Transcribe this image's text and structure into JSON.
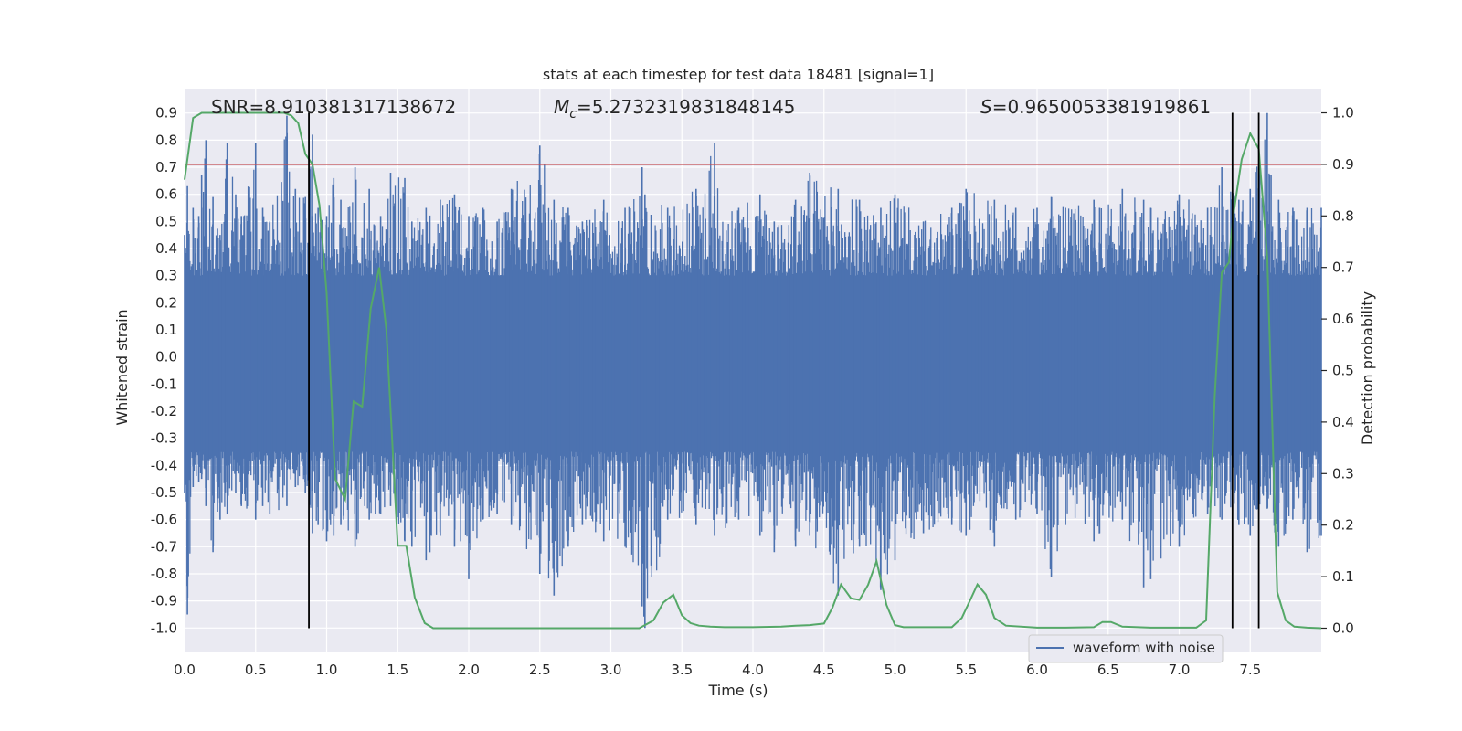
{
  "chart_data": {
    "type": "line",
    "title": "stats at each timestep for test data 18481 [signal=1]",
    "xlabel": "Time (s)",
    "ylabel": "Whitened strain",
    "y2label": "Detection probability",
    "xlim": [
      0.0,
      8.0
    ],
    "ylim": [
      -1.09,
      0.99
    ],
    "y2lim": [
      -0.047,
      1.047
    ],
    "xticks": [
      "0.0",
      "0.5",
      "1.0",
      "1.5",
      "2.0",
      "2.5",
      "3.0",
      "3.5",
      "4.0",
      "4.5",
      "5.0",
      "5.5",
      "6.0",
      "6.5",
      "7.0",
      "7.5"
    ],
    "yticks": [
      "0.9",
      "0.8",
      "0.7",
      "0.6",
      "0.5",
      "0.4",
      "0.3",
      "0.2",
      "0.1",
      "0.0",
      "-0.1",
      "-0.2",
      "-0.3",
      "-0.4",
      "-0.5",
      "-0.6",
      "-0.7",
      "-0.8",
      "-0.9",
      "-1.0"
    ],
    "y2ticks": [
      "1.0",
      "0.9",
      "0.8",
      "0.7",
      "0.6",
      "0.5",
      "0.4",
      "0.3",
      "0.2",
      "0.1",
      "0.0"
    ],
    "annotations": {
      "snr": "SNR=8.910381317138672",
      "mc_symbol": "M",
      "mc_sub": "c",
      "mc_value": "=5.2732319831848145",
      "s_symbol": "S",
      "s_value": "=0.9650053381919861"
    },
    "threshold": {
      "y2": 0.9,
      "color": "#c44e52"
    },
    "vertical_lines": [
      0.875,
      7.375,
      7.56
    ],
    "legend": {
      "label": "waveform with noise",
      "location": "lower-right"
    },
    "colors": {
      "waveform": "#4c72b0",
      "probability": "#55a868",
      "vline": "#000000",
      "plot_bg": "#eaeaf2",
      "grid": "#ffffff"
    },
    "waveform_sample": {
      "x": [
        0.0,
        0.02,
        0.06,
        0.1,
        0.12,
        0.15,
        0.2,
        0.25,
        0.3,
        0.36,
        0.4,
        0.5,
        0.55,
        0.6,
        0.72,
        0.78,
        0.85,
        0.9,
        0.94,
        1.0,
        1.05,
        1.1,
        1.12,
        1.2,
        1.3,
        1.38,
        1.45,
        1.55,
        1.6,
        1.7,
        1.8,
        1.9,
        2.0,
        2.1,
        2.2,
        2.3,
        2.5,
        2.6,
        2.7,
        2.8,
        2.95,
        3.1,
        3.22,
        3.24,
        3.4,
        3.6,
        3.73,
        3.9,
        4.05,
        4.15,
        4.3,
        4.4,
        4.6,
        4.75,
        4.9,
        5.0,
        5.2,
        5.4,
        5.5,
        5.7,
        5.85,
        6.0,
        6.1,
        6.2,
        6.4,
        6.44,
        6.6,
        6.75,
        6.8,
        7.0,
        7.2,
        7.3,
        7.42,
        7.5,
        7.62,
        7.7,
        7.8,
        7.9,
        8.0
      ],
      "y_high": [
        0.45,
        0.63,
        0.55,
        0.52,
        0.67,
        0.8,
        0.59,
        0.45,
        0.79,
        0.6,
        0.52,
        0.79,
        0.55,
        0.5,
        0.89,
        0.62,
        0.59,
        0.82,
        0.55,
        0.52,
        0.66,
        0.58,
        0.48,
        0.7,
        0.62,
        0.52,
        0.68,
        0.66,
        0.5,
        0.55,
        0.58,
        0.6,
        0.52,
        0.55,
        0.5,
        0.62,
        0.78,
        0.58,
        0.55,
        0.5,
        0.58,
        0.55,
        0.7,
        0.6,
        0.55,
        0.62,
        0.79,
        0.55,
        0.6,
        0.5,
        0.58,
        0.68,
        0.62,
        0.58,
        0.55,
        0.6,
        0.5,
        0.55,
        0.62,
        0.58,
        0.55,
        0.55,
        0.59,
        0.55,
        0.58,
        0.55,
        0.62,
        0.58,
        0.55,
        0.6,
        0.55,
        0.7,
        0.58,
        0.62,
        0.9,
        0.58,
        0.55,
        0.55,
        0.55
      ],
      "y_low": [
        -0.5,
        -0.95,
        -0.48,
        -0.46,
        -0.45,
        -0.55,
        -0.72,
        -0.6,
        -0.58,
        -0.5,
        -0.55,
        -0.6,
        -0.55,
        -0.58,
        -0.55,
        -0.48,
        -0.5,
        -0.65,
        -0.62,
        -0.68,
        -0.66,
        -0.62,
        -0.6,
        -0.7,
        -0.6,
        -0.58,
        -0.55,
        -0.68,
        -0.7,
        -0.75,
        -0.66,
        -0.7,
        -0.82,
        -0.6,
        -0.58,
        -0.62,
        -0.8,
        -0.88,
        -0.7,
        -0.62,
        -0.68,
        -0.7,
        -0.92,
        -1.0,
        -0.6,
        -0.62,
        -0.66,
        -0.6,
        -0.66,
        -0.72,
        -0.7,
        -0.66,
        -0.88,
        -0.7,
        -0.86,
        -0.75,
        -0.65,
        -0.62,
        -0.66,
        -0.7,
        -0.6,
        -0.58,
        -0.81,
        -0.62,
        -0.68,
        -0.65,
        -0.6,
        -0.85,
        -0.82,
        -0.7,
        -0.58,
        -0.6,
        -0.62,
        -0.66,
        -0.56,
        -0.7,
        -0.6,
        -0.72,
        -0.66
      ]
    },
    "probability": {
      "x": [
        0.0,
        0.06,
        0.12,
        0.2,
        0.3,
        0.4,
        0.5,
        0.6,
        0.7,
        0.75,
        0.8,
        0.85,
        0.9,
        0.95,
        1.0,
        1.06,
        1.13,
        1.19,
        1.25,
        1.31,
        1.37,
        1.42,
        1.5,
        1.56,
        1.62,
        1.69,
        1.75,
        1.81,
        2.0,
        2.2,
        2.4,
        2.6,
        2.8,
        3.0,
        3.1,
        3.2,
        3.3,
        3.37,
        3.44,
        3.5,
        3.56,
        3.62,
        3.7,
        3.8,
        3.9,
        4.0,
        4.2,
        4.3,
        4.4,
        4.5,
        4.56,
        4.62,
        4.69,
        4.75,
        4.81,
        4.87,
        4.94,
        5.0,
        5.06,
        5.2,
        5.3,
        5.4,
        5.47,
        5.53,
        5.58,
        5.64,
        5.7,
        5.78,
        6.0,
        6.2,
        6.4,
        6.46,
        6.52,
        6.6,
        6.8,
        7.0,
        7.12,
        7.19,
        7.25,
        7.3,
        7.35,
        7.38,
        7.44,
        7.5,
        7.56,
        7.62,
        7.69,
        7.75,
        7.81,
        7.9,
        8.0
      ],
      "y": [
        0.87,
        0.99,
        1.0,
        1.0,
        1.0,
        1.0,
        1.0,
        1.0,
        1.0,
        0.995,
        0.98,
        0.92,
        0.9,
        0.82,
        0.65,
        0.29,
        0.25,
        0.44,
        0.43,
        0.62,
        0.7,
        0.58,
        0.16,
        0.16,
        0.06,
        0.01,
        0.0,
        0.0,
        0.0,
        0.0,
        0.0,
        0.0,
        0.0,
        0.0,
        0.0,
        0.0,
        0.015,
        0.05,
        0.065,
        0.025,
        0.01,
        0.005,
        0.003,
        0.002,
        0.002,
        0.002,
        0.003,
        0.005,
        0.006,
        0.009,
        0.04,
        0.085,
        0.058,
        0.055,
        0.084,
        0.13,
        0.045,
        0.006,
        0.002,
        0.002,
        0.002,
        0.002,
        0.02,
        0.055,
        0.085,
        0.065,
        0.02,
        0.005,
        0.001,
        0.001,
        0.002,
        0.012,
        0.012,
        0.003,
        0.001,
        0.001,
        0.001,
        0.015,
        0.45,
        0.69,
        0.71,
        0.8,
        0.91,
        0.96,
        0.93,
        0.72,
        0.07,
        0.015,
        0.003,
        0.001,
        0.0
      ]
    }
  }
}
